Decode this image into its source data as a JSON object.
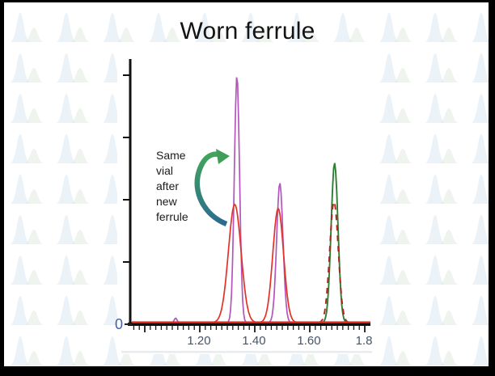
{
  "slide": {
    "title": "Worn ferrule",
    "annotation": {
      "text": "Same\nvial\nafter\nnew\nferrule"
    },
    "frame_color": "#000000",
    "background_color": "#ffffff",
    "watermark": {
      "peak1_color": "#dbe7f2",
      "peak2_color": "#dfeadf"
    }
  },
  "arrow": {
    "name": "curved-arrow-same-vial",
    "color_top": "#43a65a",
    "color_bottom": "#2b6b91"
  },
  "chart_data": {
    "type": "line",
    "title": "",
    "xlabel": "",
    "ylabel": "",
    "description": "Overlaid chromatogram traces; retention time (min) on x-axis, response on y-axis",
    "xlim": [
      0.94,
      1.82
    ],
    "ylim": [
      0,
      1.0
    ],
    "grid": false,
    "legend": "none",
    "y_origin_label": "0",
    "y_origin_label_color": "#3f62ad",
    "axis_color": "#111111",
    "axis_label_color": "#44546a",
    "baseline_color": "#e23228",
    "x_tick_labels": [
      "1.20",
      "1.40",
      "1.60",
      "1.8"
    ],
    "x_tick_values": [
      1.2,
      1.4,
      1.6,
      1.8
    ],
    "x_major_tick_values": [
      1.0,
      1.2,
      1.4,
      1.6,
      1.8
    ],
    "x_minor_tick_step": 0.02,
    "series": [
      {
        "name": "trace-green-solid",
        "color": "#2f7d33",
        "width": 1.9,
        "dash": "",
        "peaks": [
          {
            "center": 1.693,
            "height": 0.645,
            "sigma": 0.0125
          }
        ]
      },
      {
        "name": "trace-dark-red-dashed",
        "color": "#b0241d",
        "width": 1.9,
        "dash": "7,6",
        "peaks": [
          {
            "center": 1.691,
            "height": 0.49,
            "sigma": 0.0155
          }
        ]
      },
      {
        "name": "trace-purple-after-new-ferrule",
        "color": "#b455bc",
        "width": 1.7,
        "dash": "",
        "peaks": [
          {
            "center": 1.115,
            "height": 0.018,
            "sigma": 0.005
          },
          {
            "center": 1.338,
            "height": 1.0,
            "sigma": 0.0095
          },
          {
            "center": 1.494,
            "height": 0.565,
            "sigma": 0.0115
          }
        ]
      },
      {
        "name": "trace-red-worn-ferrule",
        "color": "#e23228",
        "width": 1.7,
        "dash": "",
        "peaks": [
          {
            "center": 1.33,
            "height": 0.478,
            "sigma": 0.023
          },
          {
            "center": 1.488,
            "height": 0.462,
            "sigma": 0.0195
          }
        ]
      }
    ]
  }
}
